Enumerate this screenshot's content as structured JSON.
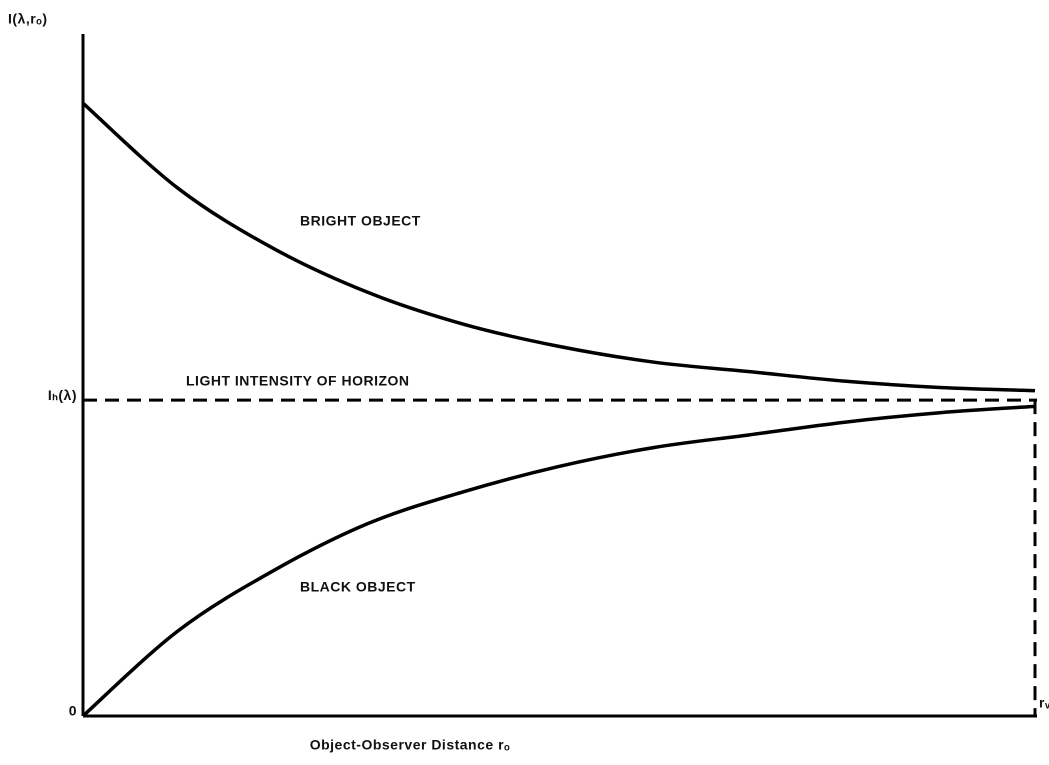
{
  "chart_data": {
    "type": "line",
    "ylabel": "I(λ,rₒ)",
    "xlabel": "Object-Observer Distance rₒ",
    "annotation": "LIGHT INTENSITY OF HORIZON",
    "x": [
      0,
      0.1,
      0.2,
      0.3,
      0.4,
      0.5,
      0.6,
      0.7,
      0.8,
      0.9,
      1
    ],
    "series": [
      {
        "name": "BRIGHT OBJECT",
        "color": "#000000",
        "values": [
          1.94,
          1.67,
          1.48,
          1.34,
          1.24,
          1.17,
          1.12,
          1.09,
          1.06,
          1.04,
          1.03
        ]
      },
      {
        "name": "BLACK OBJECT",
        "color": "#000000",
        "values": [
          0,
          0.27,
          0.46,
          0.61,
          0.71,
          0.79,
          0.85,
          0.89,
          0.93,
          0.96,
          0.98
        ]
      }
    ],
    "xlim": [
      0,
      1
    ],
    "ylim": [
      0,
      2.2
    ],
    "xticks": [
      {
        "value": 1,
        "label": "rᵥ"
      }
    ],
    "yticks": [
      0,
      {
        "value": 1,
        "label": "Iₕ(λ)"
      }
    ],
    "grid": false
  }
}
